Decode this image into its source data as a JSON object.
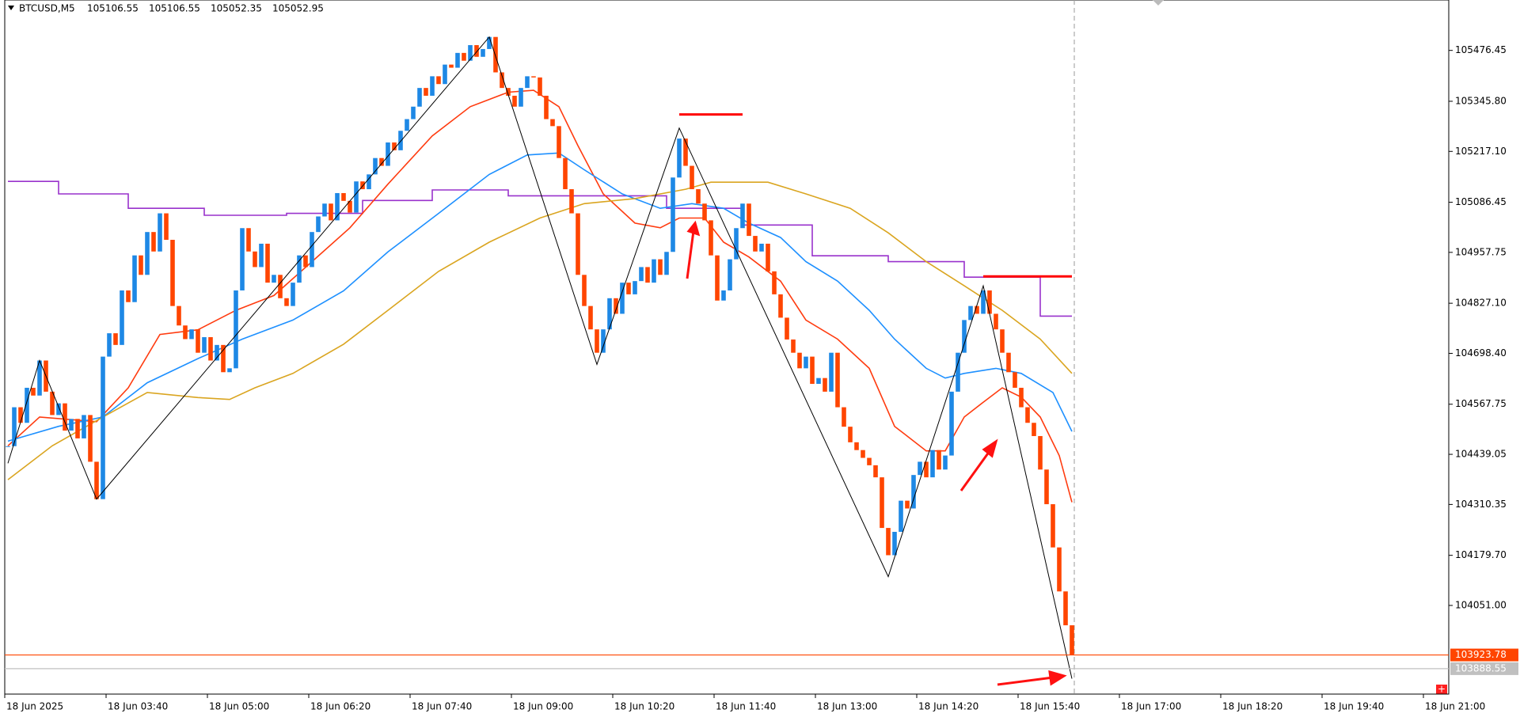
{
  "chart_data": {
    "type": "candlestick",
    "symbol": "BTCUSD,M5",
    "header_values": [
      105106.55,
      105106.55,
      105052.35,
      105052.95
    ],
    "up_color": "#1e88e5",
    "down_color": "#ff4500",
    "close": [
      104460,
      104560,
      104520,
      104610,
      104590,
      104680,
      104600,
      104540,
      104570,
      104500,
      104530,
      104480,
      104540,
      104420,
      104324,
      104690,
      104750,
      104720,
      104860,
      104830,
      104950,
      104900,
      105010,
      104960,
      105058,
      104990,
      104820,
      104770,
      104735,
      104760,
      104700,
      104740,
      104680,
      104720,
      104650,
      104660,
      104860,
      105020,
      104960,
      104920,
      104980,
      104880,
      104900,
      104840,
      104820,
      104880,
      104950,
      104920,
      105010,
      105050,
      105083,
      105040,
      105110,
      105090,
      105060,
      105140,
      105120,
      105158,
      105200,
      105180,
      105240,
      105220,
      105270,
      105300,
      105332,
      105380,
      105360,
      105410,
      105390,
      105440,
      105432,
      105470,
      105450,
      105490,
      105460,
      105480,
      105511,
      105420,
      105380,
      105360,
      105332,
      105380,
      105410,
      105407,
      105360,
      105300,
      105282,
      105200,
      105120,
      105058,
      104900,
      104820,
      104760,
      104700,
      104760,
      104840,
      104800,
      104880,
      104850,
      104884,
      104920,
      104880,
      104940,
      104900,
      104959,
      105150,
      105250,
      105180,
      105120,
      105083,
      105040,
      104950,
      104834,
      104860,
      104940,
      105020,
      105083,
      105000,
      104960,
      104980,
      104909,
      104850,
      104790,
      104734,
      104700,
      104660,
      104690,
      104620,
      104635,
      104600,
      104700,
      104560,
      104510,
      104470,
      104450,
      104430,
      104411,
      104380,
      104250,
      104180,
      104240,
      104320,
      104300,
      104386,
      104420,
      104380,
      104450,
      104400,
      104436,
      104600,
      104700,
      104784,
      104820,
      104800,
      104860,
      104800,
      104760,
      104700,
      104650,
      104610,
      104560,
      104520,
      104486,
      104400,
      104311,
      104200,
      104087,
      104000,
      103923.78
    ],
    "xlim": [
      0,
      228
    ],
    "ylim": [
      103823.3,
      105605.9
    ],
    "yticks": [
      105476.45,
      {
        "value": 105345.8,
        "label": "105345.80"
      },
      {
        "value": 105217.1,
        "label": "105217.10"
      },
      105086.45,
      104957.75,
      {
        "value": 104827.1,
        "label": "104827.10"
      },
      {
        "value": 104698.4,
        "label": "104698.40"
      },
      104567.75,
      104439.05,
      104310.35,
      {
        "value": 104179.7,
        "label": "104179.70"
      },
      {
        "value": 104051,
        "label": "104051.00"
      }
    ],
    "x_labels": [
      "18 Jun 2025",
      "18 Jun 03:40",
      "18 Jun 05:00",
      "18 Jun 06:20",
      "18 Jun 07:40",
      "18 Jun 09:00",
      "18 Jun 10:20",
      "18 Jun 11:40",
      "18 Jun 13:00",
      "18 Jun 14:20",
      "18 Jun 15:40",
      "18 Jun 17:00",
      "18 Jun 18:20",
      "18 Jun 19:40",
      "18 Jun 21:00"
    ],
    "lines": [
      {
        "color": "#ff3b0f",
        "x": [
          0,
          5,
          14,
          19,
          24,
          30,
          36,
          42,
          48,
          54,
          60,
          67,
          73,
          79,
          83,
          87,
          90,
          94,
          99,
          103,
          106,
          110,
          113,
          117,
          122,
          126,
          131,
          136,
          140,
          145,
          148,
          151,
          154,
          157,
          160,
          163,
          166,
          168
        ],
        "values": [
          104461,
          104535,
          104523,
          104610,
          104747,
          104759,
          104809,
          104847,
          104934,
          105021,
          105133,
          105257,
          105332,
          105369,
          105374,
          105332,
          105232,
          105108,
          105033,
          105021,
          105046,
          105046,
          104984,
          104946,
          104884,
          104784,
          104735,
          104660,
          104511,
          104448,
          104448,
          104535,
          104573,
          104610,
          104586,
          104535,
          104436,
          104316
        ]
      },
      {
        "color": "#1e90ff",
        "x": [
          0,
          8,
          15,
          22,
          30,
          37,
          45,
          53,
          60,
          68,
          76,
          82,
          87,
          91,
          97,
          103,
          108,
          113,
          117,
          122,
          126,
          131,
          136,
          140,
          145,
          148,
          151,
          156,
          160,
          165,
          168
        ],
        "values": [
          104473,
          104511,
          104535,
          104623,
          104685,
          104735,
          104784,
          104859,
          104959,
          105058,
          105158,
          105208,
          105213,
          105170,
          105108,
          105071,
          105083,
          105071,
          105033,
          104996,
          104934,
          104884,
          104809,
          104735,
          104660,
          104635,
          104647,
          104660,
          104647,
          104598,
          104498
        ]
      },
      {
        "color": "#daa520",
        "x": [
          0,
          7,
          15,
          22,
          30,
          35,
          39,
          45,
          53,
          60,
          68,
          76,
          84,
          91,
          99,
          107,
          111,
          120,
          126,
          133,
          139,
          145,
          151,
          157,
          163,
          168
        ],
        "values": [
          104374,
          104461,
          104535,
          104598,
          104585,
          104580,
          104610,
          104647,
          104722,
          104809,
          104909,
          104984,
          105046,
          105083,
          105096,
          105120,
          105138,
          105138,
          105108,
          105071,
          105008,
          104934,
          104872,
          104809,
          104735,
          104647
        ]
      }
    ],
    "steps": {
      "color": "#9932cc",
      "x": [
        0,
        8,
        19,
        31,
        44,
        56,
        67,
        79,
        104,
        116,
        127,
        139,
        151,
        163,
        168
      ],
      "values": [
        105140,
        105108,
        105071,
        105053,
        105058,
        105091,
        105118,
        105103,
        105071,
        105028,
        104949,
        104934,
        104894,
        104794,
        104794
      ]
    },
    "zigzag": {
      "color": "#000000",
      "x": [
        0,
        5,
        14,
        76,
        93,
        106,
        139,
        154,
        168
      ],
      "values": [
        104416,
        104680,
        104324,
        105511,
        104670,
        105277,
        104125,
        104872,
        103863
      ]
    },
    "levels": [
      {
        "color": "#ff0000",
        "x": [
          106,
          116
        ],
        "value": 105312
      },
      {
        "color": "#ff0000",
        "x": [
          154,
          168
        ],
        "value": 104896
      }
    ],
    "price_lines": [
      {
        "value": 103923.78,
        "color": "#ff4500"
      },
      {
        "value": 103888.55,
        "color": "#c0c0c0"
      }
    ]
  }
}
